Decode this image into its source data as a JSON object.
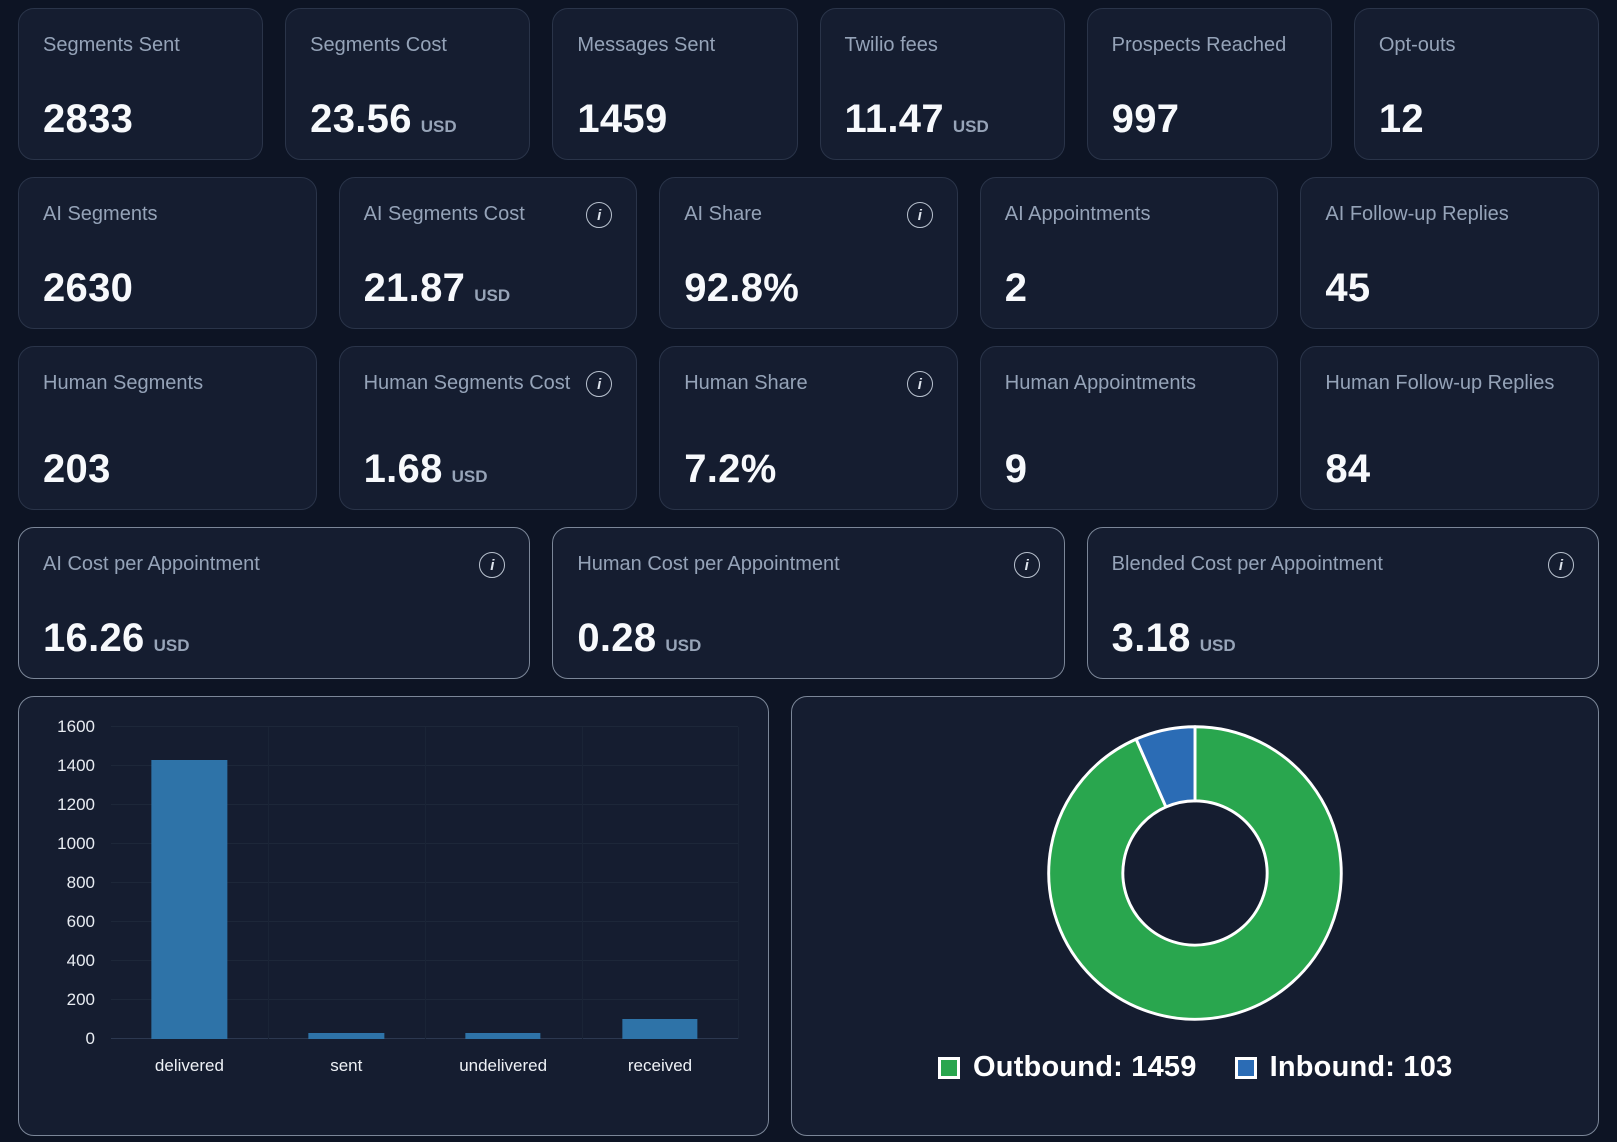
{
  "rows": [
    {
      "cards": [
        {
          "label": "Segments Sent",
          "value": "2833"
        },
        {
          "label": "Segments Cost",
          "value": "23.56",
          "unit": "USD"
        },
        {
          "label": "Messages Sent",
          "value": "1459"
        },
        {
          "label": "Twilio fees",
          "value": "11.47",
          "unit": "USD"
        },
        {
          "label": "Prospects Reached",
          "value": "997"
        },
        {
          "label": "Opt-outs",
          "value": "12"
        }
      ]
    },
    {
      "cards": [
        {
          "label": "AI Segments",
          "value": "2630"
        },
        {
          "label": "AI Segments Cost",
          "value": "21.87",
          "unit": "USD",
          "info": "i"
        },
        {
          "label": "AI Share",
          "value": "92.8%",
          "info": "i"
        },
        {
          "label": "AI Appointments",
          "value": "2"
        },
        {
          "label": "AI Follow-up Replies",
          "value": "45"
        }
      ]
    },
    {
      "cards": [
        {
          "label": "Human Segments",
          "value": "203"
        },
        {
          "label": "Human Segments Cost",
          "value": "1.68",
          "unit": "USD",
          "info": "i"
        },
        {
          "label": "Human Share",
          "value": "7.2%",
          "info": "i"
        },
        {
          "label": "Human Appointments",
          "value": "9"
        },
        {
          "label": "Human Follow-up Replies",
          "value": "84"
        }
      ]
    },
    {
      "cards": [
        {
          "label": "AI Cost per Appointment",
          "value": "16.26",
          "unit": "USD",
          "info": "i"
        },
        {
          "label": "Human Cost per Appointment",
          "value": "0.28",
          "unit": "USD",
          "info": "i"
        },
        {
          "label": "Blended Cost per Appointment",
          "value": "3.18",
          "unit": "USD",
          "info": "i"
        }
      ]
    }
  ],
  "chart_data": [
    {
      "type": "bar",
      "title": "",
      "categories": [
        "delivered",
        "sent",
        "undelivered",
        "received"
      ],
      "values": [
        1430,
        8,
        10,
        103
      ],
      "xlabel": "",
      "ylabel": "",
      "ylim": [
        0,
        1600
      ],
      "ytick_step": 200,
      "bar_color": "#2e73a8",
      "grid": true,
      "legend": "none"
    },
    {
      "type": "pie",
      "donut": true,
      "labels": [
        "Outbound",
        "Inbound"
      ],
      "values": [
        1459,
        103
      ],
      "colors": [
        "#29a64e",
        "#2b6cb5"
      ],
      "slice_border_color": "#ffffff",
      "legend_position": "bottom",
      "legend_labels": [
        "Outbound: 1459",
        "Inbound: 103"
      ]
    }
  ]
}
